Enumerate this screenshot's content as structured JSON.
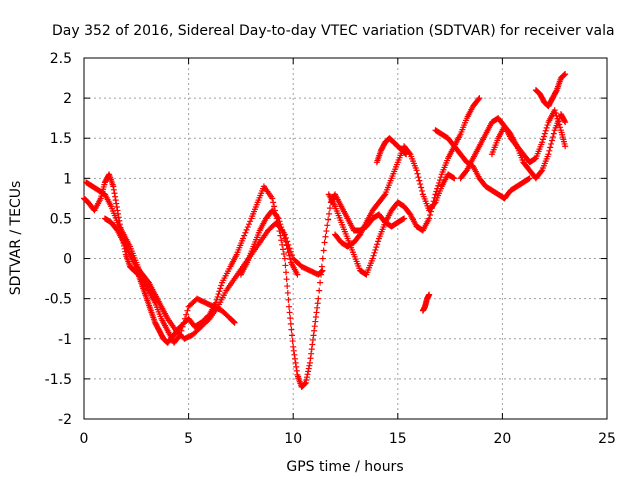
{
  "chart_data": {
    "type": "scatter",
    "title": "Day 352 of 2016, Sidereal Day-to-day VTEC variation (SDTVAR) for receiver vala",
    "xlabel": "GPS time / hours",
    "ylabel": "SDTVAR / TECUs",
    "xlim": [
      0,
      25
    ],
    "ylim": [
      -2,
      2.5
    ],
    "xticks": [
      0,
      5,
      10,
      15,
      20,
      25
    ],
    "yticks": [
      -2,
      -1.5,
      -1,
      -0.5,
      0,
      0.5,
      1,
      1.5,
      2,
      2.5
    ],
    "grid": true,
    "marker": "+",
    "series_color": "#ff0000",
    "series": [
      {
        "name": "trace-1",
        "x": [
          0.0,
          0.2,
          0.5,
          0.8,
          1.0,
          1.2,
          1.4,
          1.6,
          1.8,
          2.0,
          2.2,
          2.4,
          2.6,
          2.8,
          3.0,
          3.2,
          3.4,
          3.6,
          3.8,
          4.0,
          4.3,
          4.6,
          5.0,
          5.3,
          5.6,
          6.0,
          6.3,
          6.6,
          7.0,
          7.3,
          7.6,
          8.0,
          8.3,
          8.6,
          9.0,
          9.3,
          9.6,
          9.8,
          10.0,
          10.2,
          10.4,
          10.6,
          10.8,
          11.0,
          11.2,
          11.5,
          11.8,
          12.0,
          12.3,
          12.6,
          12.9,
          13.2,
          13.5,
          13.8,
          14.1,
          14.4,
          14.7,
          15.0,
          15.3
        ],
        "y": [
          0.75,
          0.7,
          0.6,
          0.75,
          0.95,
          1.05,
          0.9,
          0.6,
          0.3,
          0.05,
          -0.1,
          -0.15,
          -0.2,
          -0.35,
          -0.5,
          -0.65,
          -0.8,
          -0.9,
          -1.0,
          -1.05,
          -0.95,
          -0.85,
          -0.75,
          -0.85,
          -0.8,
          -0.7,
          -0.55,
          -0.3,
          -0.1,
          0.05,
          0.25,
          0.5,
          0.7,
          0.9,
          0.75,
          0.4,
          0.0,
          -0.6,
          -1.1,
          -1.45,
          -1.6,
          -1.55,
          -1.3,
          -0.9,
          -0.5,
          0.2,
          0.7,
          0.8,
          0.65,
          0.5,
          0.35,
          0.35,
          0.4,
          0.5,
          0.55,
          0.45,
          0.4,
          0.45,
          0.5
        ]
      },
      {
        "name": "trace-2",
        "x": [
          0.1,
          0.4,
          0.7,
          1.0,
          1.3,
          1.6,
          1.9,
          2.2,
          2.5,
          2.8,
          3.1,
          3.4,
          3.7,
          4.0,
          4.3,
          4.6,
          5.0,
          5.4,
          5.8,
          6.2,
          6.6,
          7.0,
          7.2
        ],
        "y": [
          0.95,
          0.9,
          0.85,
          0.8,
          0.65,
          0.45,
          0.3,
          0.15,
          -0.05,
          -0.25,
          -0.4,
          -0.55,
          -0.75,
          -0.9,
          -1.05,
          -0.95,
          -0.6,
          -0.5,
          -0.55,
          -0.6,
          -0.65,
          -0.75,
          -0.8
        ]
      },
      {
        "name": "trace-3",
        "x": [
          1.0,
          1.3,
          1.6,
          1.9,
          2.2,
          2.5,
          2.8,
          3.1,
          3.4,
          3.7,
          4.0,
          4.4,
          4.8,
          5.2,
          5.6,
          6.0,
          6.4,
          6.8,
          7.2,
          7.6,
          8.0,
          8.4,
          8.8,
          9.2,
          9.6,
          10.0,
          10.4,
          10.8,
          11.2,
          11.4
        ],
        "y": [
          0.5,
          0.45,
          0.35,
          0.2,
          0.05,
          -0.1,
          -0.2,
          -0.3,
          -0.45,
          -0.6,
          -0.75,
          -0.9,
          -1.0,
          -0.95,
          -0.85,
          -0.75,
          -0.6,
          -0.4,
          -0.25,
          -0.1,
          0.05,
          0.2,
          0.35,
          0.45,
          0.3,
          0.0,
          -0.1,
          -0.15,
          -0.2,
          -0.15
        ]
      },
      {
        "name": "trace-4",
        "x": [
          7.5,
          7.8,
          8.1,
          8.4,
          8.7,
          9.0,
          9.3,
          9.6,
          9.9,
          10.2
        ],
        "y": [
          -0.2,
          -0.05,
          0.15,
          0.35,
          0.5,
          0.6,
          0.5,
          0.25,
          -0.05,
          -0.2
        ]
      },
      {
        "name": "trace-5",
        "x": [
          11.7,
          12.0,
          12.3,
          12.6,
          12.9,
          13.2,
          13.5,
          13.8,
          14.1,
          14.4,
          14.7,
          15.0,
          15.3,
          15.6,
          15.9,
          16.2,
          16.5,
          16.8,
          17.1,
          17.4,
          17.7,
          18.0,
          18.3,
          18.6,
          18.9
        ],
        "y": [
          0.8,
          0.65,
          0.45,
          0.25,
          0.05,
          -0.15,
          -0.2,
          0.0,
          0.25,
          0.45,
          0.6,
          0.7,
          0.65,
          0.55,
          0.4,
          0.35,
          0.5,
          0.8,
          1.05,
          1.25,
          1.4,
          1.55,
          1.75,
          1.9,
          2.0
        ]
      },
      {
        "name": "trace-6",
        "x": [
          12.0,
          12.3,
          12.6,
          12.9,
          13.2,
          13.5,
          13.8,
          14.1,
          14.4,
          14.7,
          15.0,
          15.3,
          15.6,
          15.9,
          16.2,
          16.5,
          16.8,
          17.1,
          17.4,
          17.7
        ],
        "y": [
          0.3,
          0.2,
          0.15,
          0.2,
          0.3,
          0.45,
          0.6,
          0.7,
          0.8,
          1.0,
          1.2,
          1.4,
          1.3,
          1.1,
          0.8,
          0.6,
          0.7,
          0.9,
          1.05,
          1.0
        ]
      },
      {
        "name": "trace-7",
        "x": [
          14.0,
          14.2,
          14.4,
          14.6,
          14.8,
          15.0,
          15.2,
          15.4
        ],
        "y": [
          1.2,
          1.35,
          1.45,
          1.5,
          1.45,
          1.4,
          1.35,
          1.3
        ]
      },
      {
        "name": "trace-8",
        "x": [
          16.2,
          16.3,
          16.4,
          16.5
        ],
        "y": [
          -0.65,
          -0.6,
          -0.5,
          -0.45
        ]
      },
      {
        "name": "trace-9",
        "x": [
          16.8,
          17.1,
          17.4,
          17.7,
          18.0,
          18.3,
          18.6,
          18.9,
          19.2,
          19.5,
          19.8,
          20.1,
          20.4,
          20.7,
          21.0,
          21.3
        ],
        "y": [
          1.6,
          1.55,
          1.5,
          1.4,
          1.3,
          1.2,
          1.15,
          1.0,
          0.9,
          0.85,
          0.8,
          0.75,
          0.85,
          0.9,
          0.95,
          1.0
        ]
      },
      {
        "name": "trace-10",
        "x": [
          18.0,
          18.3,
          18.6,
          18.9,
          19.2,
          19.5,
          19.8,
          20.1,
          20.4,
          20.7,
          21.0,
          21.3,
          21.6,
          21.9,
          22.2,
          22.5,
          22.8,
          23.0
        ],
        "y": [
          1.0,
          1.1,
          1.25,
          1.4,
          1.55,
          1.7,
          1.75,
          1.65,
          1.5,
          1.4,
          1.3,
          1.2,
          1.25,
          1.45,
          1.7,
          1.85,
          1.6,
          1.4
        ]
      },
      {
        "name": "trace-11",
        "x": [
          19.5,
          19.8,
          20.1,
          20.4,
          20.7,
          21.0,
          21.3,
          21.6,
          21.9,
          22.2,
          22.5,
          22.8,
          23.0
        ],
        "y": [
          1.3,
          1.5,
          1.65,
          1.55,
          1.4,
          1.2,
          1.1,
          1.0,
          1.1,
          1.3,
          1.6,
          1.8,
          1.7
        ]
      },
      {
        "name": "trace-12",
        "x": [
          21.6,
          21.8,
          22.0,
          22.2,
          22.4,
          22.6,
          22.8,
          23.0
        ],
        "y": [
          2.1,
          2.05,
          1.95,
          1.9,
          2.0,
          2.1,
          2.25,
          2.3
        ]
      }
    ]
  }
}
